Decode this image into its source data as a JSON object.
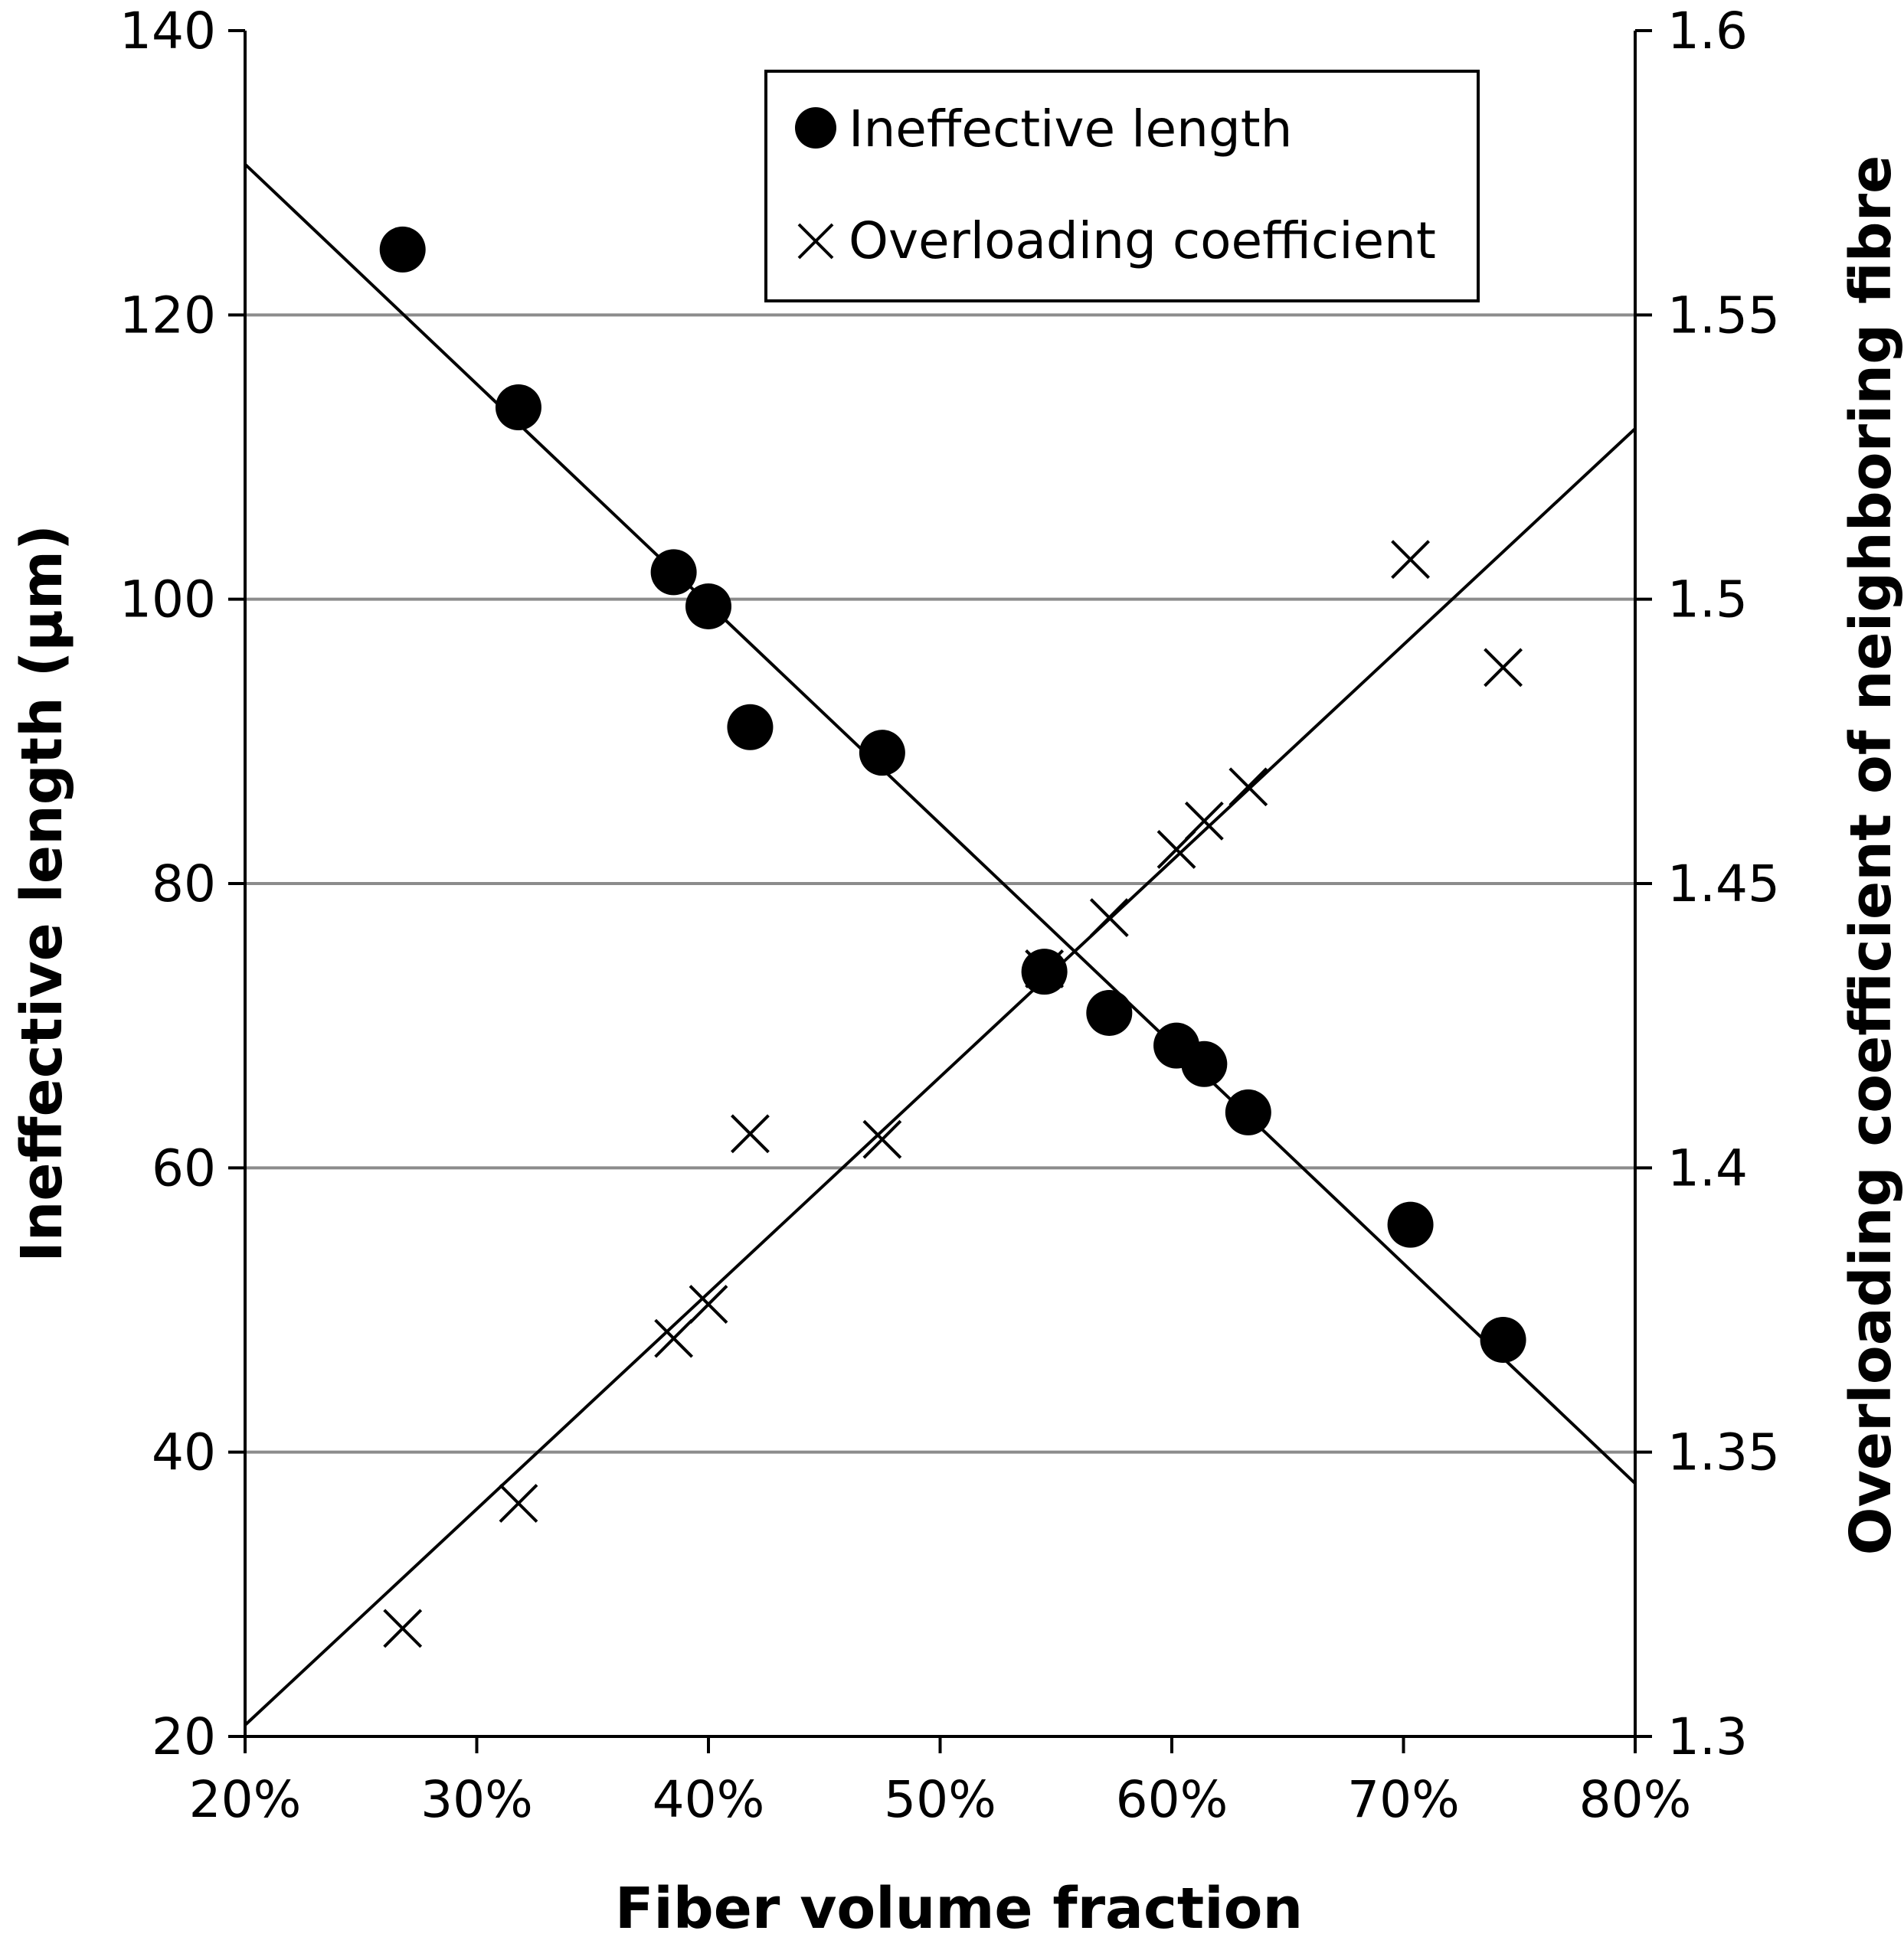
{
  "chart_data": {
    "type": "scatter",
    "xlabel": "Fiber volume fraction",
    "ylabel_left": "Ineffective length (µm)",
    "ylabel_right": "Overloading coefficient of neighboring fibre",
    "xlim": [
      20,
      80
    ],
    "ylim_left": [
      20,
      140
    ],
    "ylim_right": [
      1.3,
      1.6
    ],
    "x_ticks": [
      20,
      30,
      40,
      50,
      60,
      70,
      80
    ],
    "x_tick_labels": [
      "20%",
      "30%",
      "40%",
      "50%",
      "60%",
      "70%",
      "80%"
    ],
    "y_left_ticks": [
      20,
      40,
      60,
      80,
      100,
      120,
      140
    ],
    "y_left_tick_labels": [
      "20",
      "40",
      "60",
      "80",
      "100",
      "120",
      "140"
    ],
    "y_right_ticks": [
      1.3,
      1.35,
      1.4,
      1.45,
      1.5,
      1.55,
      1.6
    ],
    "y_right_tick_labels": [
      "1.3",
      "1.35",
      "1.4",
      "1.45",
      "1.5",
      "1.55",
      "1.6"
    ],
    "gridlines": "horizontal",
    "legend_position": "top-right",
    "series": [
      {
        "name": "Ineffective length",
        "marker": "filled-circle",
        "axis": "left",
        "x": [
          26.8,
          31.8,
          38.5,
          40.0,
          41.8,
          47.5,
          54.5,
          57.3,
          60.2,
          61.4,
          63.3,
          70.3,
          74.3
        ],
        "y": [
          124.6,
          113.5,
          101.9,
          99.5,
          91.0,
          89.2,
          73.8,
          70.9,
          68.6,
          67.3,
          63.9,
          56.0,
          47.9
        ],
        "trendline": {
          "x": [
            20,
            80
          ],
          "y": [
            130.6,
            37.8
          ]
        }
      },
      {
        "name": "Overloading coefficient",
        "marker": "x",
        "axis": "right",
        "x": [
          26.8,
          31.8,
          38.5,
          40.0,
          41.8,
          47.5,
          54.5,
          57.3,
          60.2,
          61.4,
          63.3,
          70.3,
          74.3
        ],
        "y": [
          1.319,
          1.341,
          1.37,
          1.376,
          1.406,
          1.405,
          1.435,
          1.444,
          1.456,
          1.461,
          1.467,
          1.507,
          1.488
        ],
        "trendline": {
          "x": [
            20,
            80
          ],
          "y": [
            1.302,
            1.53
          ]
        }
      }
    ]
  }
}
